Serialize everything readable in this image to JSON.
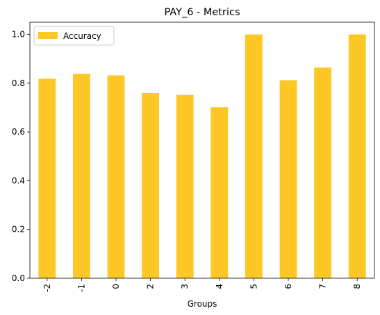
{
  "chart_data": {
    "type": "bar",
    "title": "PAY_6 - Metrics",
    "xlabel": "Groups",
    "ylabel": "",
    "categories": [
      "-2",
      "-1",
      "0",
      "2",
      "3",
      "4",
      "5",
      "6",
      "7",
      "8"
    ],
    "series": [
      {
        "name": "Accuracy",
        "color": "#fdc725",
        "values": [
          0.818,
          0.838,
          0.832,
          0.76,
          0.752,
          0.702,
          1.0,
          0.812,
          0.864,
          1.0
        ]
      }
    ],
    "ylim": [
      0,
      1.05
    ],
    "yticks": [
      0.0,
      0.2,
      0.4,
      0.6,
      0.8,
      1.0
    ],
    "ytick_labels": [
      "0.0",
      "0.2",
      "0.4",
      "0.6",
      "0.8",
      "1.0"
    ],
    "grid": false,
    "legend_position": "upper-left"
  }
}
